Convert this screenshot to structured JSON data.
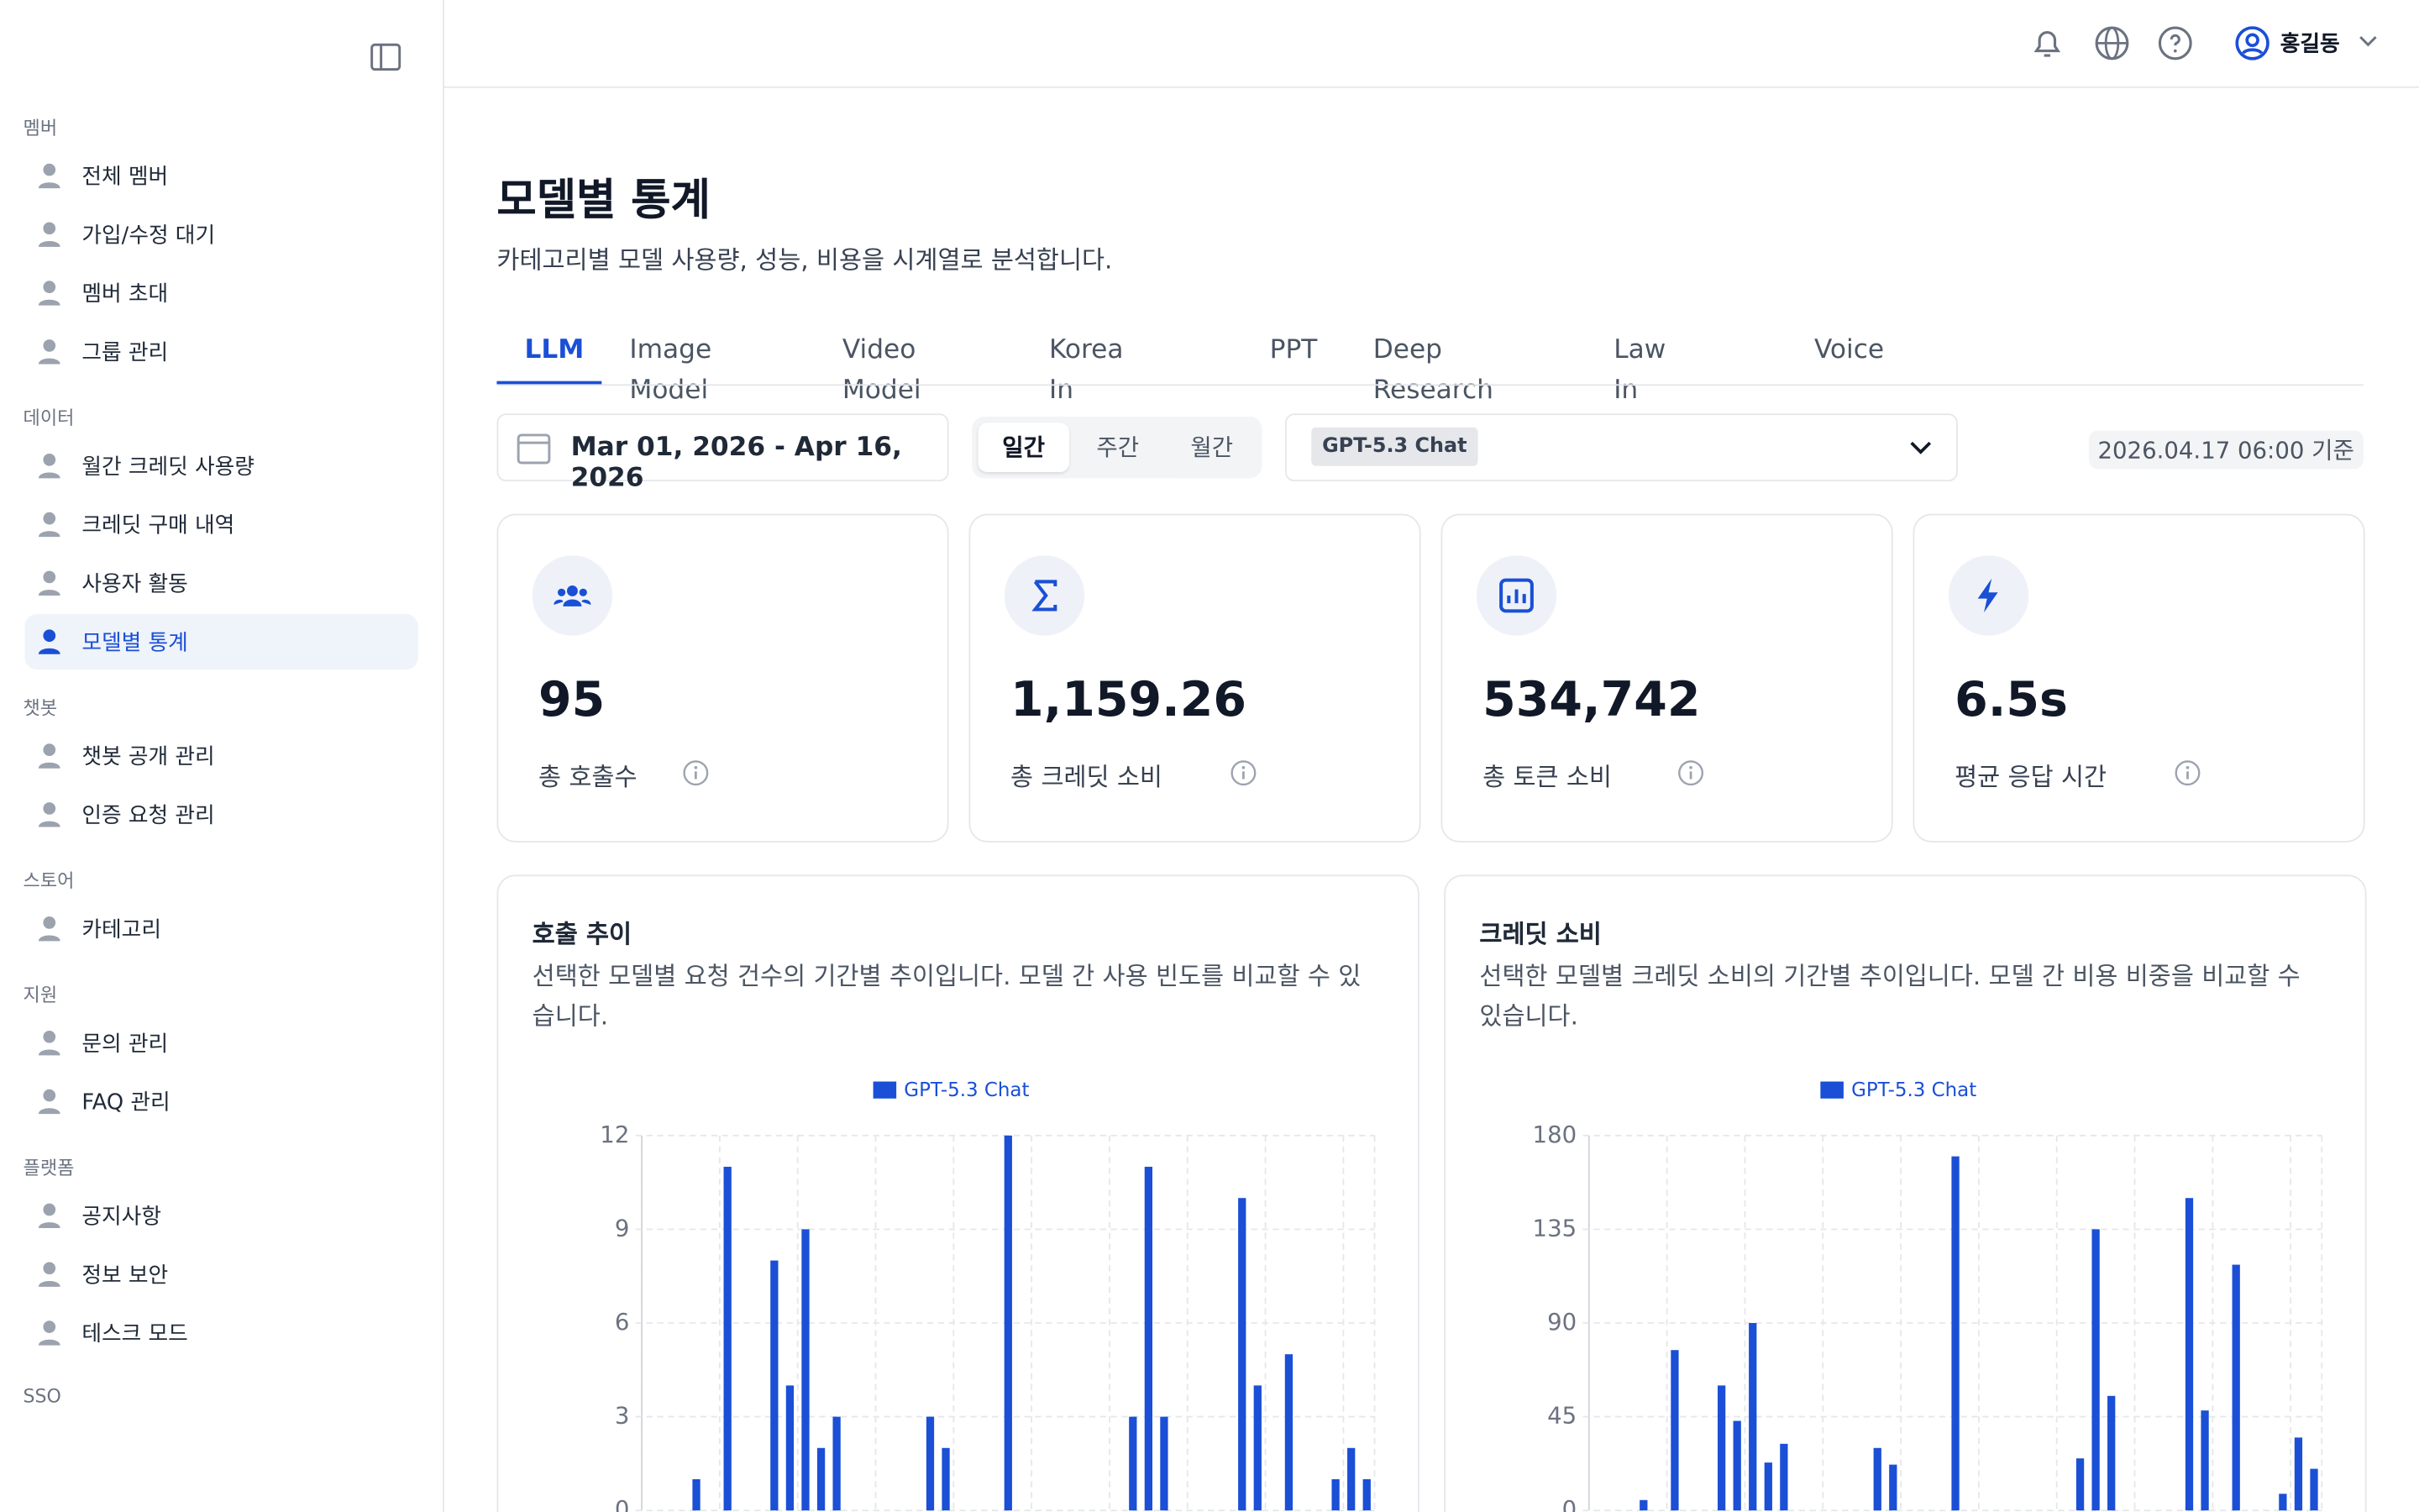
{
  "sidebar": {
    "sections": [
      {
        "title": "멤버",
        "items": [
          "전체 멤버",
          "가입/수정 대기",
          "멤버 초대",
          "그룹 관리"
        ]
      },
      {
        "title": "데이터",
        "items": [
          "월간 크레딧 사용량",
          "크레딧 구매 내역",
          "사용자 활동",
          "모델별 통계"
        ]
      },
      {
        "title": "챗봇",
        "items": [
          "챗봇 공개 관리",
          "인증 요청 관리"
        ]
      },
      {
        "title": "스토어",
        "items": [
          "카테고리"
        ]
      },
      {
        "title": "지원",
        "items": [
          "문의 관리",
          "FAQ 관리"
        ]
      },
      {
        "title": "플랫폼",
        "items": [
          "공지사항",
          "정보 보안",
          "테스크 모드"
        ]
      },
      {
        "title": "SSO",
        "items": []
      }
    ]
  },
  "header": {
    "user": "홍길동"
  },
  "page": {
    "title": "모델별 통계",
    "subtitle": "카테고리별 모델 사용량, 성능, 비용을 시계열로 분석합니다.",
    "tabs": [
      "LLM",
      "Image Model",
      "Video Model",
      "Korea In Data",
      "PPT",
      "Deep Research",
      "Law In Data",
      "Voice"
    ],
    "date_range": "Mar 01, 2026 - Apr 16, 2026",
    "periods": [
      "일간",
      "주간",
      "월간"
    ],
    "model_chip": "GPT-5.3 Chat",
    "as_of": "2026.04.17 06:00 기준",
    "stats": [
      {
        "value": "95",
        "label": "총 호출수"
      },
      {
        "value": "1,159.26",
        "label": "총 크레딧 소비"
      },
      {
        "value": "534,742",
        "label": "총 토큰 소비"
      },
      {
        "value": "6.5s",
        "label": "평균 응답 시간"
      }
    ]
  },
  "chart_data": [
    {
      "type": "bar",
      "title": "호출 추이",
      "subtitle": "선택한 모델별 요청 건수의 기간별 추이입니다. 모델 간 사용 빈도를 비교할 수 있습니다.",
      "categories": [
        null,
        null,
        null,
        null,
        null,
        null,
        null,
        null,
        null,
        null,
        null,
        null,
        null,
        null,
        null,
        null,
        null,
        null,
        null,
        null,
        null,
        null,
        null,
        null,
        null,
        null,
        null,
        null,
        null,
        null,
        null,
        null,
        null,
        null,
        null,
        null,
        null,
        null,
        null,
        null,
        null,
        null,
        null,
        null,
        null,
        null,
        null
      ],
      "series": [
        {
          "name": "GPT-5.3 Chat",
          "color": "#1a4fd6",
          "values": [
            0,
            0,
            0,
            1,
            0,
            11,
            0,
            0,
            8,
            4,
            9,
            2,
            3,
            0,
            0,
            0,
            0,
            0,
            3,
            2,
            0,
            0,
            0,
            12,
            0,
            0,
            0,
            0,
            0,
            0,
            0,
            3,
            11,
            3,
            0,
            0,
            0,
            0,
            10,
            4,
            0,
            5,
            0,
            0,
            1,
            2,
            1
          ]
        }
      ],
      "ylim": [
        0,
        12
      ],
      "yticks": [
        0,
        3,
        6,
        9,
        12
      ],
      "grid": true
    },
    {
      "type": "bar",
      "title": "크레딧 소비",
      "subtitle": "선택한 모델별 크레딧 소비의 기간별 추이입니다. 모델 간 비용 비중을 비교할 수 있습니다.",
      "categories": [
        null,
        null,
        null,
        null,
        null,
        null,
        null,
        null,
        null,
        null,
        null,
        null,
        null,
        null,
        null,
        null,
        null,
        null,
        null,
        null,
        null,
        null,
        null,
        null,
        null,
        null,
        null,
        null,
        null,
        null,
        null,
        null,
        null,
        null,
        null,
        null,
        null,
        null,
        null,
        null,
        null,
        null,
        null,
        null,
        null,
        null,
        null
      ],
      "series": [
        {
          "name": "GPT-5.3 Chat",
          "color": "#1a4fd6",
          "values": [
            0,
            0,
            0,
            5,
            0,
            77,
            0,
            0,
            60,
            43,
            90,
            23,
            32,
            0,
            0,
            0,
            0,
            0,
            30,
            22,
            0,
            0,
            0,
            170,
            0,
            0,
            0,
            0,
            0,
            0,
            0,
            25,
            135,
            55,
            0,
            0,
            0,
            0,
            150,
            48,
            0,
            118,
            0,
            0,
            8,
            35,
            20
          ]
        }
      ],
      "ylim": [
        0,
        180
      ],
      "yticks": [
        0,
        45,
        90,
        135,
        180
      ],
      "grid": true
    }
  ]
}
